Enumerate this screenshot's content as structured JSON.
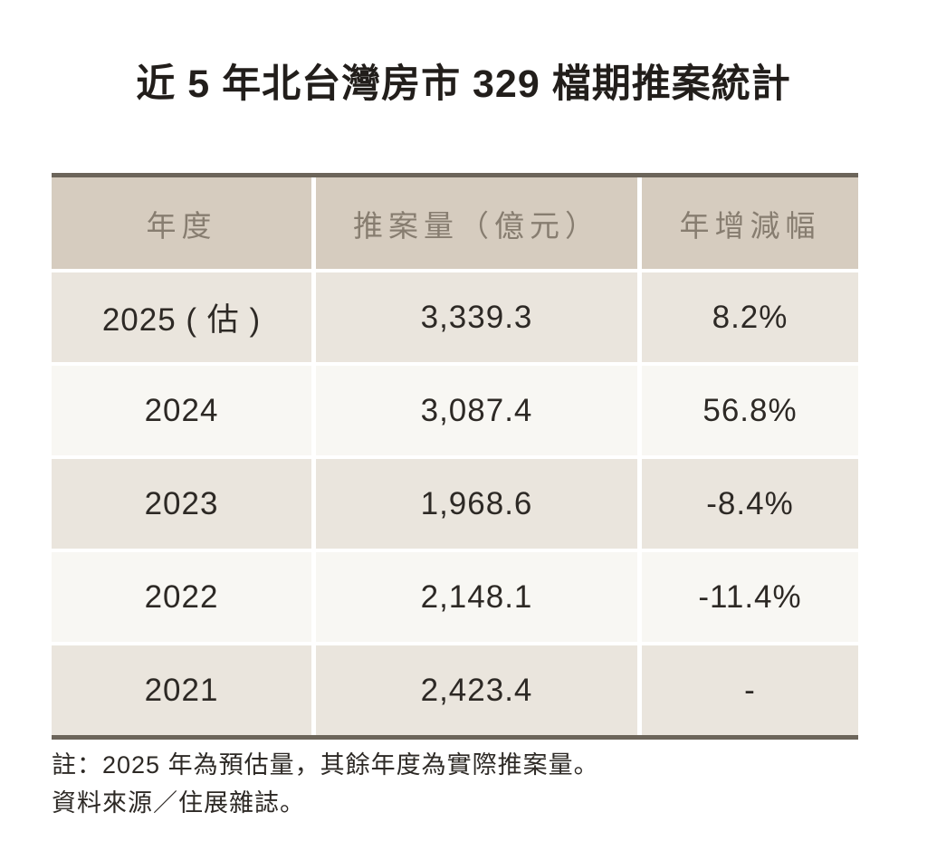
{
  "title": "近 5 年北台灣房市 329 檔期推案統計",
  "table": {
    "headers": [
      "年度",
      "推案量（億元）",
      "年增減幅"
    ],
    "rows": [
      {
        "year": "2025 ( 估 )",
        "volume": "3,339.3",
        "change": "8.2%"
      },
      {
        "year": "2024",
        "volume": "3,087.4",
        "change": "56.8%"
      },
      {
        "year": "2023",
        "volume": "1,968.6",
        "change": "-8.4%"
      },
      {
        "year": "2022",
        "volume": "2,148.1",
        "change": "-11.4%"
      },
      {
        "year": "2021",
        "volume": "2,423.4",
        "change": "-"
      }
    ]
  },
  "notes": {
    "note1": "註：2025 年為預估量，其餘年度為實際推案量。",
    "note2": "資料來源／住展雜誌。"
  },
  "colors": {
    "title_text": "#221e1b",
    "border_dark": "#6c655a",
    "header_bg": "#d6ccbf",
    "header_text": "#877d70",
    "row_beige": "#eae5dd",
    "row_white": "#f8f7f3",
    "body_text": "#2d2925"
  },
  "chart_data": {
    "type": "table",
    "title": "近 5 年北台灣房市 329 檔期推案統計",
    "columns": [
      "年度",
      "推案量（億元）",
      "年增減幅"
    ],
    "rows": [
      [
        "2025 ( 估 )",
        3339.3,
        "8.2%"
      ],
      [
        "2024",
        3087.4,
        "56.8%"
      ],
      [
        "2023",
        1968.6,
        "-8.4%"
      ],
      [
        "2022",
        2148.1,
        "-11.4%"
      ],
      [
        "2021",
        2423.4,
        null
      ]
    ],
    "units": "億元",
    "notes": [
      "註：2025 年為預估量，其餘年度為實際推案量。",
      "資料來源／住展雜誌。"
    ]
  }
}
